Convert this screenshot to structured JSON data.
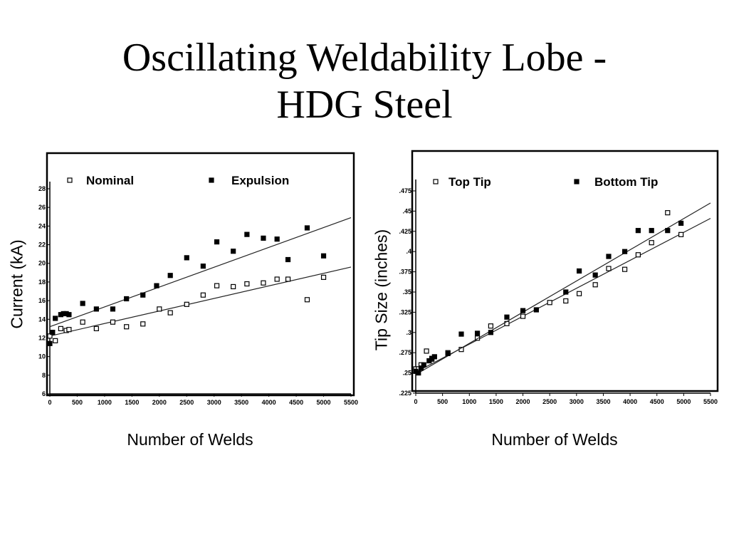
{
  "slide": {
    "title_line1": "Oscillating Weldability Lobe -",
    "title_line2": "HDG Steel"
  },
  "chart_data": [
    {
      "type": "scatter",
      "xlabel": "Number of Welds",
      "ylabel": "Current (kA)",
      "xlim": [
        0,
        5500
      ],
      "ylim": [
        6,
        28
      ],
      "x_ticks": [
        "0",
        "500",
        "1000",
        "1500",
        "2000",
        "2500",
        "3000",
        "3500",
        "4000",
        "4500",
        "5000",
        "5500"
      ],
      "y_ticks": [
        "6",
        "8",
        "10",
        "12",
        "14",
        "16",
        "18",
        "20",
        "22",
        "24",
        "26",
        "28"
      ],
      "grid": false,
      "legend_position": "top",
      "series": [
        {
          "name": "Nominal",
          "marker": "open-square",
          "x": [
            0,
            100,
            200,
            300,
            350,
            600,
            850,
            1150,
            1400,
            1700,
            2000,
            2200,
            2500,
            2800,
            3050,
            3350,
            3600,
            3900,
            4150,
            4350,
            4700,
            5000
          ],
          "y": [
            12.2,
            11.7,
            13.0,
            12.8,
            12.9,
            13.7,
            13.0,
            13.7,
            13.2,
            13.5,
            15.1,
            14.7,
            15.6,
            16.6,
            17.6,
            17.5,
            17.8,
            17.9,
            18.3,
            18.3,
            16.1,
            18.5
          ],
          "trend": [
            [
              0,
              12.2
            ],
            [
              5500,
              19.6
            ]
          ]
        },
        {
          "name": "Expulsion",
          "marker": "filled-square",
          "x": [
            0,
            50,
            100,
            200,
            250,
            300,
            350,
            600,
            850,
            1150,
            1400,
            1700,
            1950,
            2200,
            2500,
            2800,
            3050,
            3350,
            3600,
            3900,
            4150,
            4350,
            4700,
            5000
          ],
          "y": [
            11.4,
            12.6,
            14.1,
            14.5,
            14.6,
            14.6,
            14.5,
            15.7,
            15.1,
            15.1,
            16.2,
            16.6,
            17.6,
            18.7,
            20.6,
            19.7,
            22.3,
            21.3,
            23.1,
            22.7,
            22.6,
            20.4,
            23.8,
            20.8
          ],
          "trend": [
            [
              0,
              13.2
            ],
            [
              5500,
              24.9
            ]
          ]
        }
      ]
    },
    {
      "type": "scatter",
      "xlabel": "Number of Welds",
      "ylabel": "Tip Size (inches)",
      "xlim": [
        0,
        5500
      ],
      "ylim": [
        0.225,
        0.475
      ],
      "x_ticks": [
        "0",
        "500",
        "1000",
        "1500",
        "2000",
        "2500",
        "3000",
        "3500",
        "4000",
        "4500",
        "5000",
        "5500"
      ],
      "y_ticks": [
        ".225",
        ".25",
        ".275",
        ".3",
        ".325",
        ".35",
        ".375",
        ".4",
        ".425",
        ".45",
        ".475"
      ],
      "grid": false,
      "legend_position": "top",
      "series": [
        {
          "name": "Top Tip",
          "marker": "open-square",
          "x": [
            0,
            50,
            100,
            200,
            300,
            600,
            850,
            1150,
            1400,
            1700,
            2000,
            2500,
            2800,
            3050,
            3350,
            3600,
            3900,
            4150,
            4400,
            4700,
            4950
          ],
          "y": [
            0.255,
            0.255,
            0.26,
            0.277,
            0.267,
            0.275,
            0.279,
            0.293,
            0.308,
            0.311,
            0.32,
            0.337,
            0.339,
            0.348,
            0.359,
            0.379,
            0.378,
            0.396,
            0.411,
            0.448,
            0.421
          ],
          "trend": [
            [
              0,
              0.251
            ],
            [
              5500,
              0.441
            ]
          ]
        },
        {
          "name": "Bottom Tip",
          "marker": "filled-square",
          "x": [
            0,
            50,
            100,
            150,
            250,
            300,
            350,
            600,
            850,
            1150,
            1400,
            1700,
            2000,
            2250,
            2800,
            3050,
            3350,
            3600,
            3900,
            4150,
            4400,
            4700,
            4950
          ],
          "y": [
            0.252,
            0.25,
            0.256,
            0.26,
            0.265,
            0.268,
            0.27,
            0.274,
            0.298,
            0.299,
            0.3,
            0.319,
            0.327,
            0.328,
            0.35,
            0.376,
            0.371,
            0.394,
            0.4,
            0.426,
            0.426,
            0.426,
            0.435
          ],
          "trend": [
            [
              0,
              0.248
            ],
            [
              5500,
              0.46
            ]
          ]
        }
      ]
    }
  ]
}
